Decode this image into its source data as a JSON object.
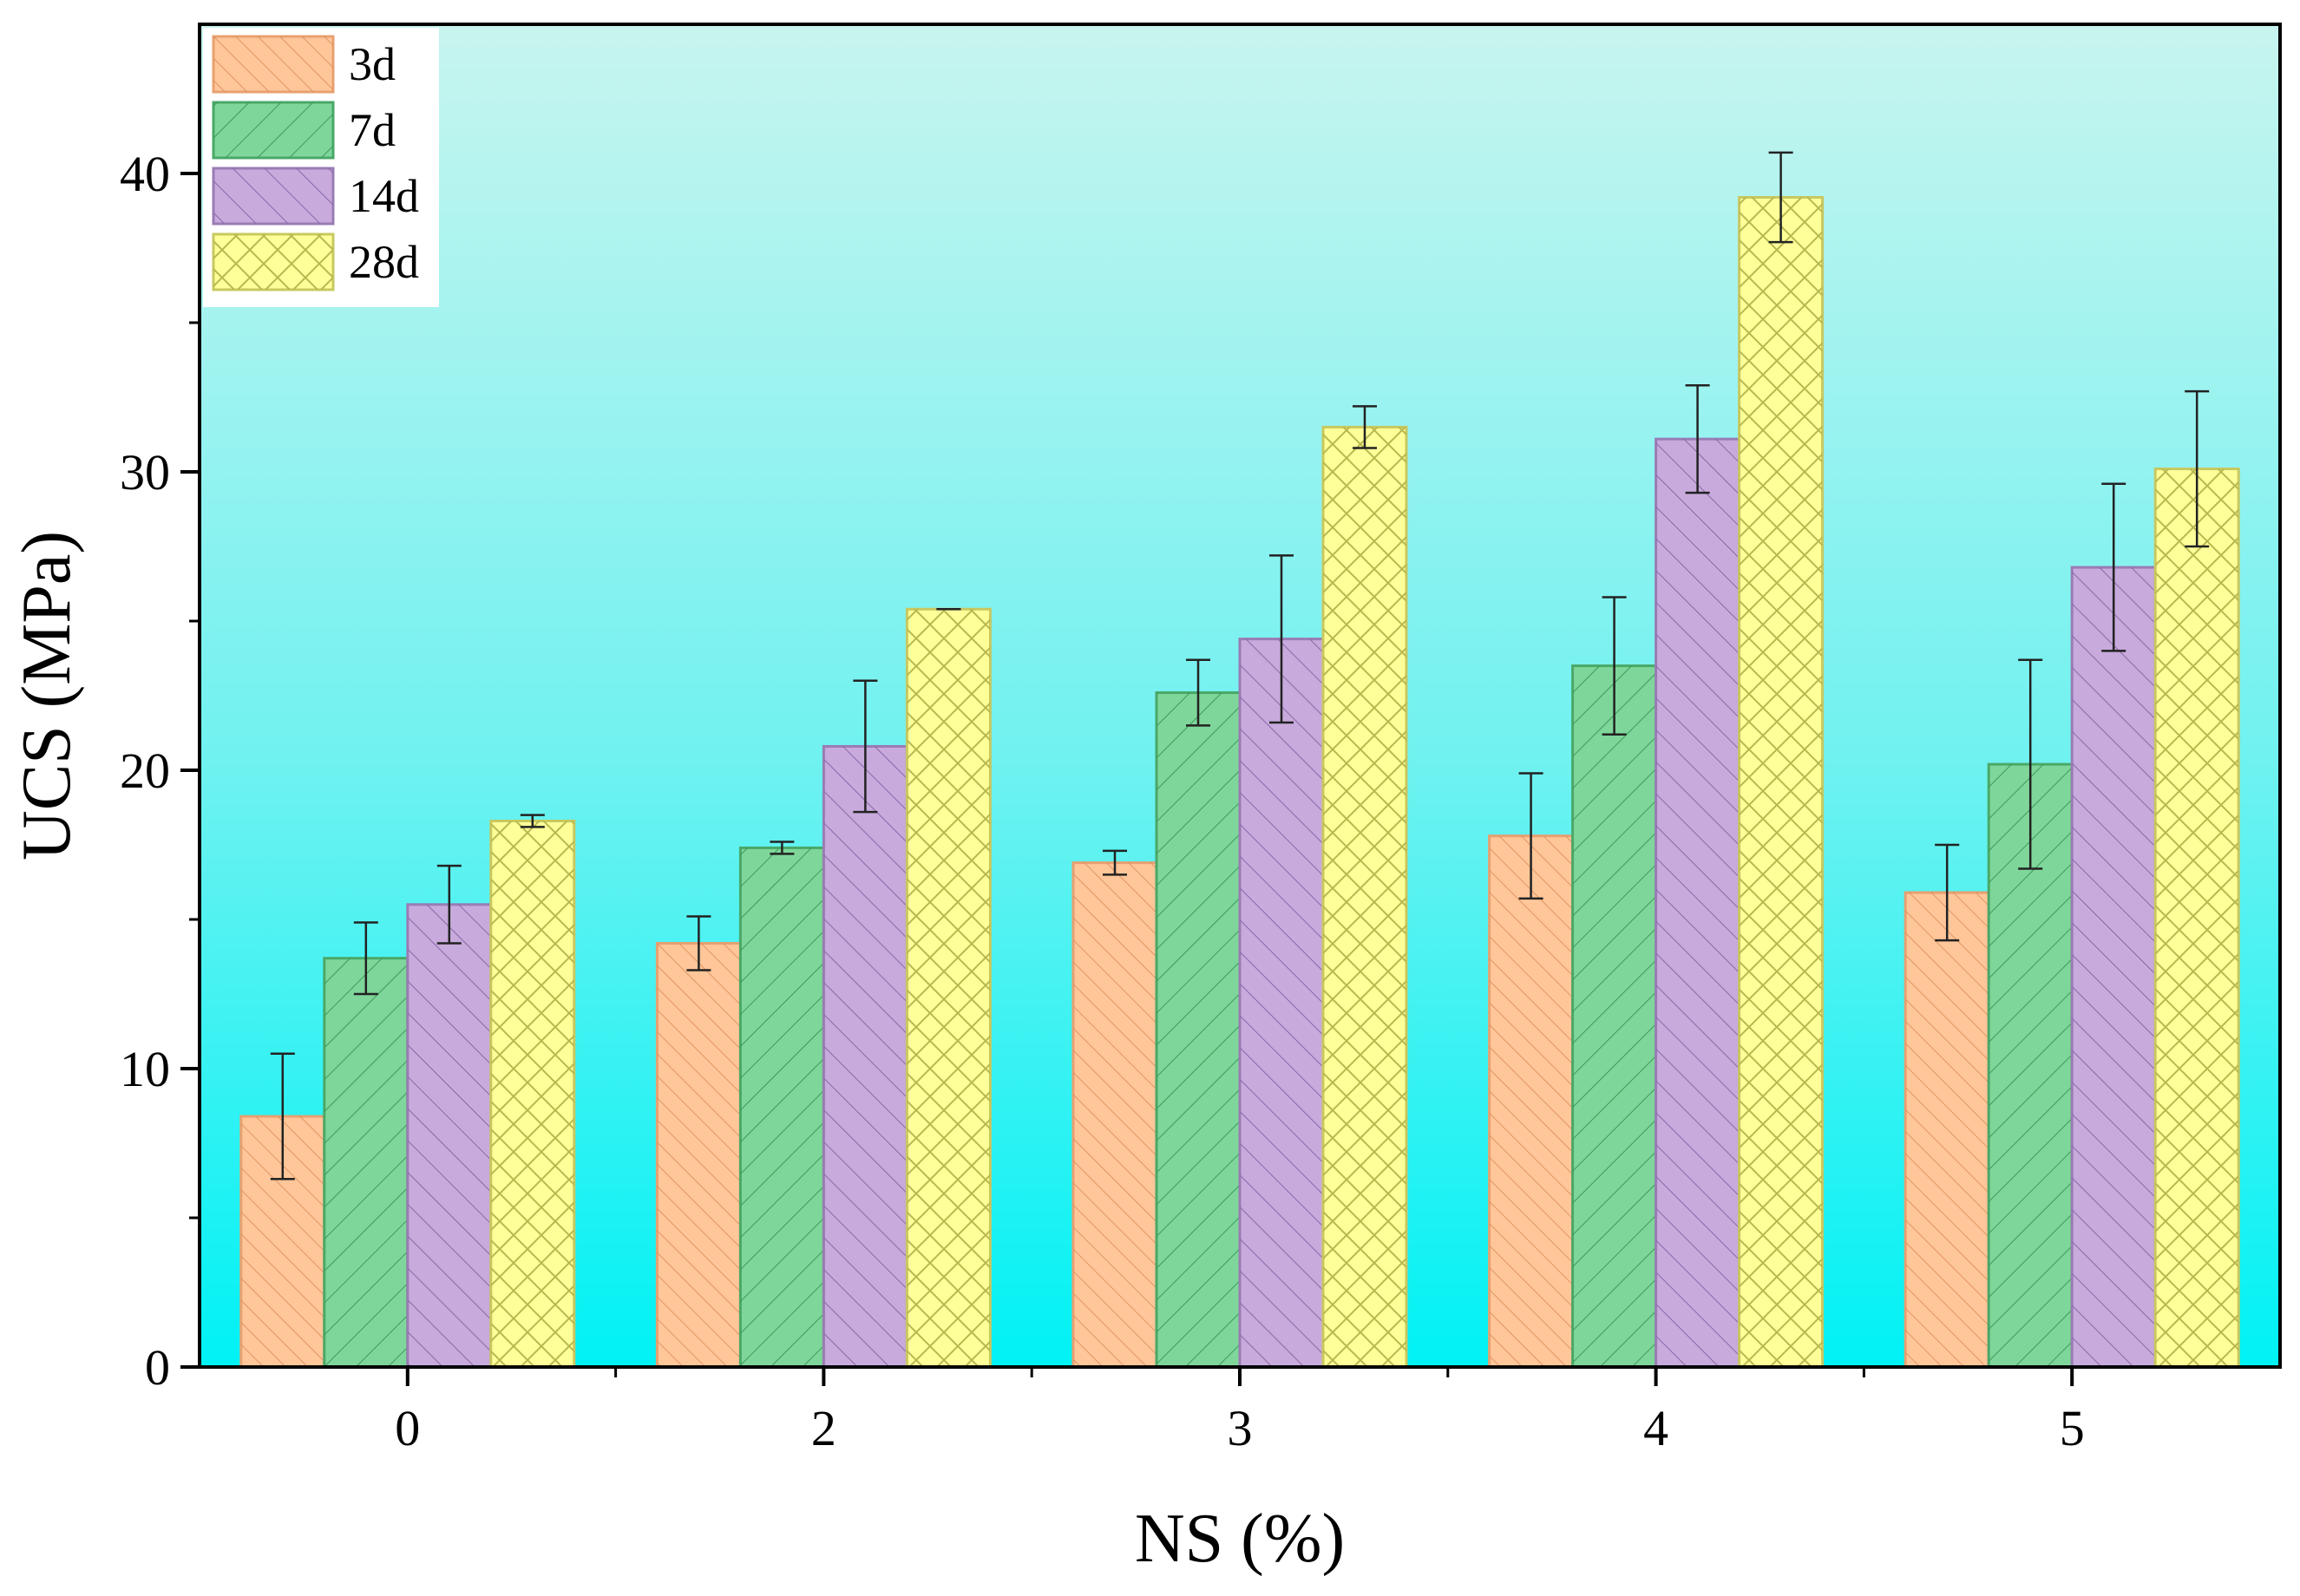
{
  "chart_data": {
    "type": "bar",
    "title": "",
    "xlabel": "NS (%)",
    "ylabel": "UCS (MPa)",
    "categories": [
      "0",
      "2",
      "3",
      "4",
      "5"
    ],
    "ylim": [
      0,
      45
    ],
    "yticks": [
      0,
      10,
      20,
      30,
      40
    ],
    "legend_position": "top-left",
    "background_gradient": [
      "#c8f4ef",
      "#00f2f5"
    ],
    "series": [
      {
        "name": "3d",
        "fill": "#ffc699",
        "stroke": "#e8a070",
        "hatch": "back-diagonal-fine",
        "values": [
          8.4,
          14.2,
          16.9,
          17.8,
          15.9
        ],
        "errors": [
          2.1,
          0.9,
          0.4,
          2.1,
          1.6
        ]
      },
      {
        "name": "7d",
        "fill": "#7fd69a",
        "stroke": "#4aa868",
        "hatch": "forward-diagonal",
        "values": [
          13.7,
          17.4,
          22.6,
          23.5,
          20.2
        ],
        "errors": [
          1.2,
          0.2,
          1.1,
          2.3,
          3.5
        ]
      },
      {
        "name": "14d",
        "fill": "#c8aadc",
        "stroke": "#9a7cb4",
        "hatch": "back-diagonal",
        "values": [
          15.5,
          20.8,
          24.4,
          31.1,
          26.8
        ],
        "errors": [
          1.3,
          2.2,
          2.8,
          1.8,
          2.8
        ]
      },
      {
        "name": "28d",
        "fill": "#ffff99",
        "stroke": "#c8c860",
        "hatch": "cross",
        "values": [
          18.3,
          25.4,
          31.5,
          39.2,
          30.1
        ],
        "errors": [
          0.2,
          0.0,
          0.7,
          1.5,
          2.6
        ]
      }
    ]
  }
}
